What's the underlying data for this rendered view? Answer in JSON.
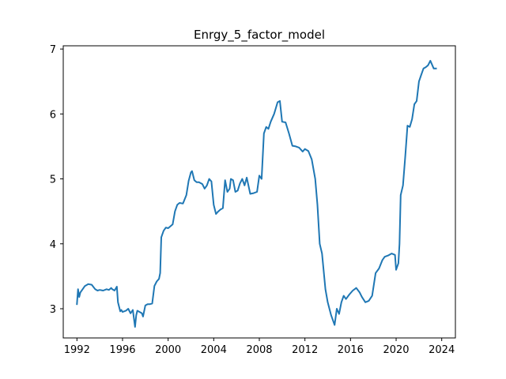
{
  "chart_data": {
    "type": "line",
    "title": "Enrgy_5_factor_model",
    "xlabel": "",
    "ylabel": "",
    "xlim": [
      1990.8,
      2025.2
    ],
    "ylim": [
      2.55,
      7.05
    ],
    "xticks": [
      1992,
      1996,
      2000,
      2004,
      2008,
      2012,
      2016,
      2020,
      2024
    ],
    "yticks": [
      3,
      4,
      5,
      6,
      7
    ],
    "grid": false,
    "line_color": "#1f77b4",
    "series": [
      {
        "x": [
          1992.0,
          1992.1,
          1992.2,
          1992.3,
          1992.5,
          1992.7,
          1993.0,
          1993.3,
          1993.6,
          1993.8,
          1994.0,
          1994.3,
          1994.6,
          1994.8,
          1995.0,
          1995.1,
          1995.3,
          1995.5,
          1995.6,
          1995.8,
          1995.9,
          1996.0,
          1996.3,
          1996.5,
          1996.7,
          1996.9,
          1997.1,
          1997.2,
          1997.3,
          1997.5,
          1997.7,
          1997.8,
          1998.0,
          1998.2,
          1998.4,
          1998.6,
          1998.8,
          1999.0,
          1999.2,
          1999.3,
          1999.4,
          1999.6,
          1999.8,
          2000.0,
          2000.2,
          2000.4,
          2000.6,
          2000.8,
          2001.0,
          2001.3,
          2001.6,
          2001.8,
          2002.0,
          2002.1,
          2002.3,
          2002.5,
          2002.7,
          2003.0,
          2003.2,
          2003.4,
          2003.6,
          2003.8,
          2004.0,
          2004.2,
          2004.4,
          2004.6,
          2004.8,
          2005.0,
          2005.2,
          2005.4,
          2005.5,
          2005.7,
          2005.9,
          2006.1,
          2006.3,
          2006.5,
          2006.7,
          2006.9,
          2007.2,
          2007.5,
          2007.8,
          2008.0,
          2008.2,
          2008.4,
          2008.6,
          2008.8,
          2009.0,
          2009.3,
          2009.6,
          2009.8,
          2010.0,
          2010.3,
          2010.6,
          2010.9,
          2011.2,
          2011.5,
          2011.8,
          2012.0,
          2012.3,
          2012.6,
          2012.9,
          2013.1,
          2013.3,
          2013.5,
          2013.8,
          2014.0,
          2014.3,
          2014.6,
          2014.8,
          2015.0,
          2015.2,
          2015.4,
          2015.6,
          2015.9,
          2016.2,
          2016.5,
          2016.8,
          2017.0,
          2017.3,
          2017.6,
          2017.9,
          2018.2,
          2018.5,
          2018.8,
          2019.0,
          2019.3,
          2019.6,
          2019.9,
          2020.0,
          2020.2,
          2020.3,
          2020.4,
          2020.6,
          2020.8,
          2021.0,
          2021.2,
          2021.4,
          2021.6,
          2021.8,
          2022.0,
          2022.2,
          2022.4,
          2022.6,
          2022.8,
          2023.0,
          2023.3,
          2023.5
        ],
        "values": [
          3.07,
          3.3,
          3.18,
          3.25,
          3.3,
          3.35,
          3.38,
          3.37,
          3.3,
          3.28,
          3.29,
          3.28,
          3.3,
          3.29,
          3.32,
          3.3,
          3.28,
          3.34,
          3.1,
          2.96,
          2.98,
          2.95,
          2.97,
          3.0,
          2.93,
          2.98,
          2.72,
          2.9,
          2.97,
          2.95,
          2.93,
          2.88,
          3.05,
          3.07,
          3.07,
          3.08,
          3.35,
          3.42,
          3.46,
          3.55,
          4.1,
          4.2,
          4.25,
          4.24,
          4.27,
          4.3,
          4.5,
          4.6,
          4.63,
          4.62,
          4.75,
          4.97,
          5.1,
          5.12,
          4.98,
          4.95,
          4.95,
          4.92,
          4.85,
          4.9,
          5.0,
          4.96,
          4.6,
          4.46,
          4.5,
          4.53,
          4.55,
          4.98,
          4.8,
          4.85,
          5.0,
          4.98,
          4.8,
          4.82,
          4.93,
          5.0,
          4.9,
          5.02,
          4.77,
          4.78,
          4.8,
          5.05,
          5.0,
          5.7,
          5.8,
          5.77,
          5.88,
          6.0,
          6.18,
          6.2,
          5.88,
          5.87,
          5.7,
          5.51,
          5.5,
          5.48,
          5.42,
          5.46,
          5.43,
          5.3,
          5.0,
          4.6,
          4.0,
          3.85,
          3.3,
          3.1,
          2.9,
          2.75,
          3.0,
          2.92,
          3.1,
          3.2,
          3.15,
          3.22,
          3.28,
          3.32,
          3.25,
          3.18,
          3.1,
          3.12,
          3.2,
          3.55,
          3.62,
          3.75,
          3.8,
          3.82,
          3.85,
          3.83,
          3.6,
          3.7,
          4.0,
          4.75,
          4.9,
          5.35,
          5.82,
          5.8,
          5.92,
          6.15,
          6.2,
          6.5,
          6.6,
          6.7,
          6.72,
          6.75,
          6.82,
          6.7,
          6.7
        ]
      }
    ]
  }
}
